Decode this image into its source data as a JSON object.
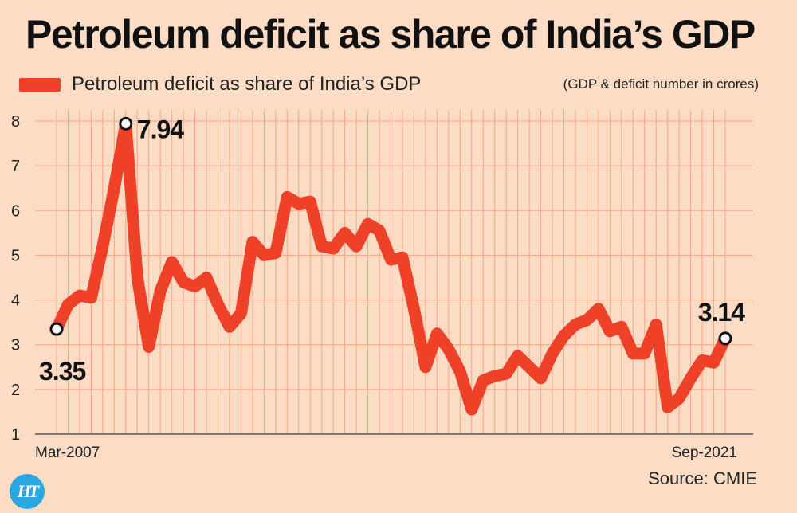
{
  "title": "Petroleum deficit as share of India’s GDP",
  "note": "(GDP & deficit number in crores)",
  "source": "Source: CMIE",
  "logo_text": "HT",
  "colors": {
    "line": "#ee4128",
    "background": "#fcdcc4",
    "grid": "#f5a585"
  },
  "chart_data": {
    "type": "line",
    "legend": "Petroleum deficit as share of India’s GDP",
    "legend_position": "top-left",
    "grid": true,
    "ylim": [
      1,
      8
    ],
    "yticks": [
      "1",
      "2",
      "3",
      "4",
      "5",
      "6",
      "7",
      "8"
    ],
    "x_start_label": "Mar-2007",
    "x_end_label": "Sep-2021",
    "series": [
      {
        "values": [
          3.35,
          3.9,
          4.1,
          4.05,
          5.2,
          6.5,
          7.94,
          4.5,
          2.95,
          4.2,
          4.85,
          4.4,
          4.3,
          4.5,
          3.9,
          3.4,
          3.7,
          5.3,
          5.0,
          5.05,
          6.3,
          6.15,
          6.2,
          5.2,
          5.15,
          5.5,
          5.2,
          5.7,
          5.55,
          4.9,
          4.95,
          3.8,
          2.5,
          3.25,
          2.9,
          2.4,
          1.55,
          2.2,
          2.3,
          2.35,
          2.75,
          2.5,
          2.25,
          2.8,
          3.2,
          3.45,
          3.55,
          3.8,
          3.3,
          3.4,
          2.8,
          2.8,
          3.45,
          1.6,
          1.8,
          2.25,
          2.65,
          2.6,
          3.14
        ]
      }
    ],
    "annotations": [
      {
        "index": 0,
        "label": "3.35"
      },
      {
        "index": 6,
        "label": "7.94"
      },
      {
        "index": 58,
        "label": "3.14"
      }
    ]
  }
}
